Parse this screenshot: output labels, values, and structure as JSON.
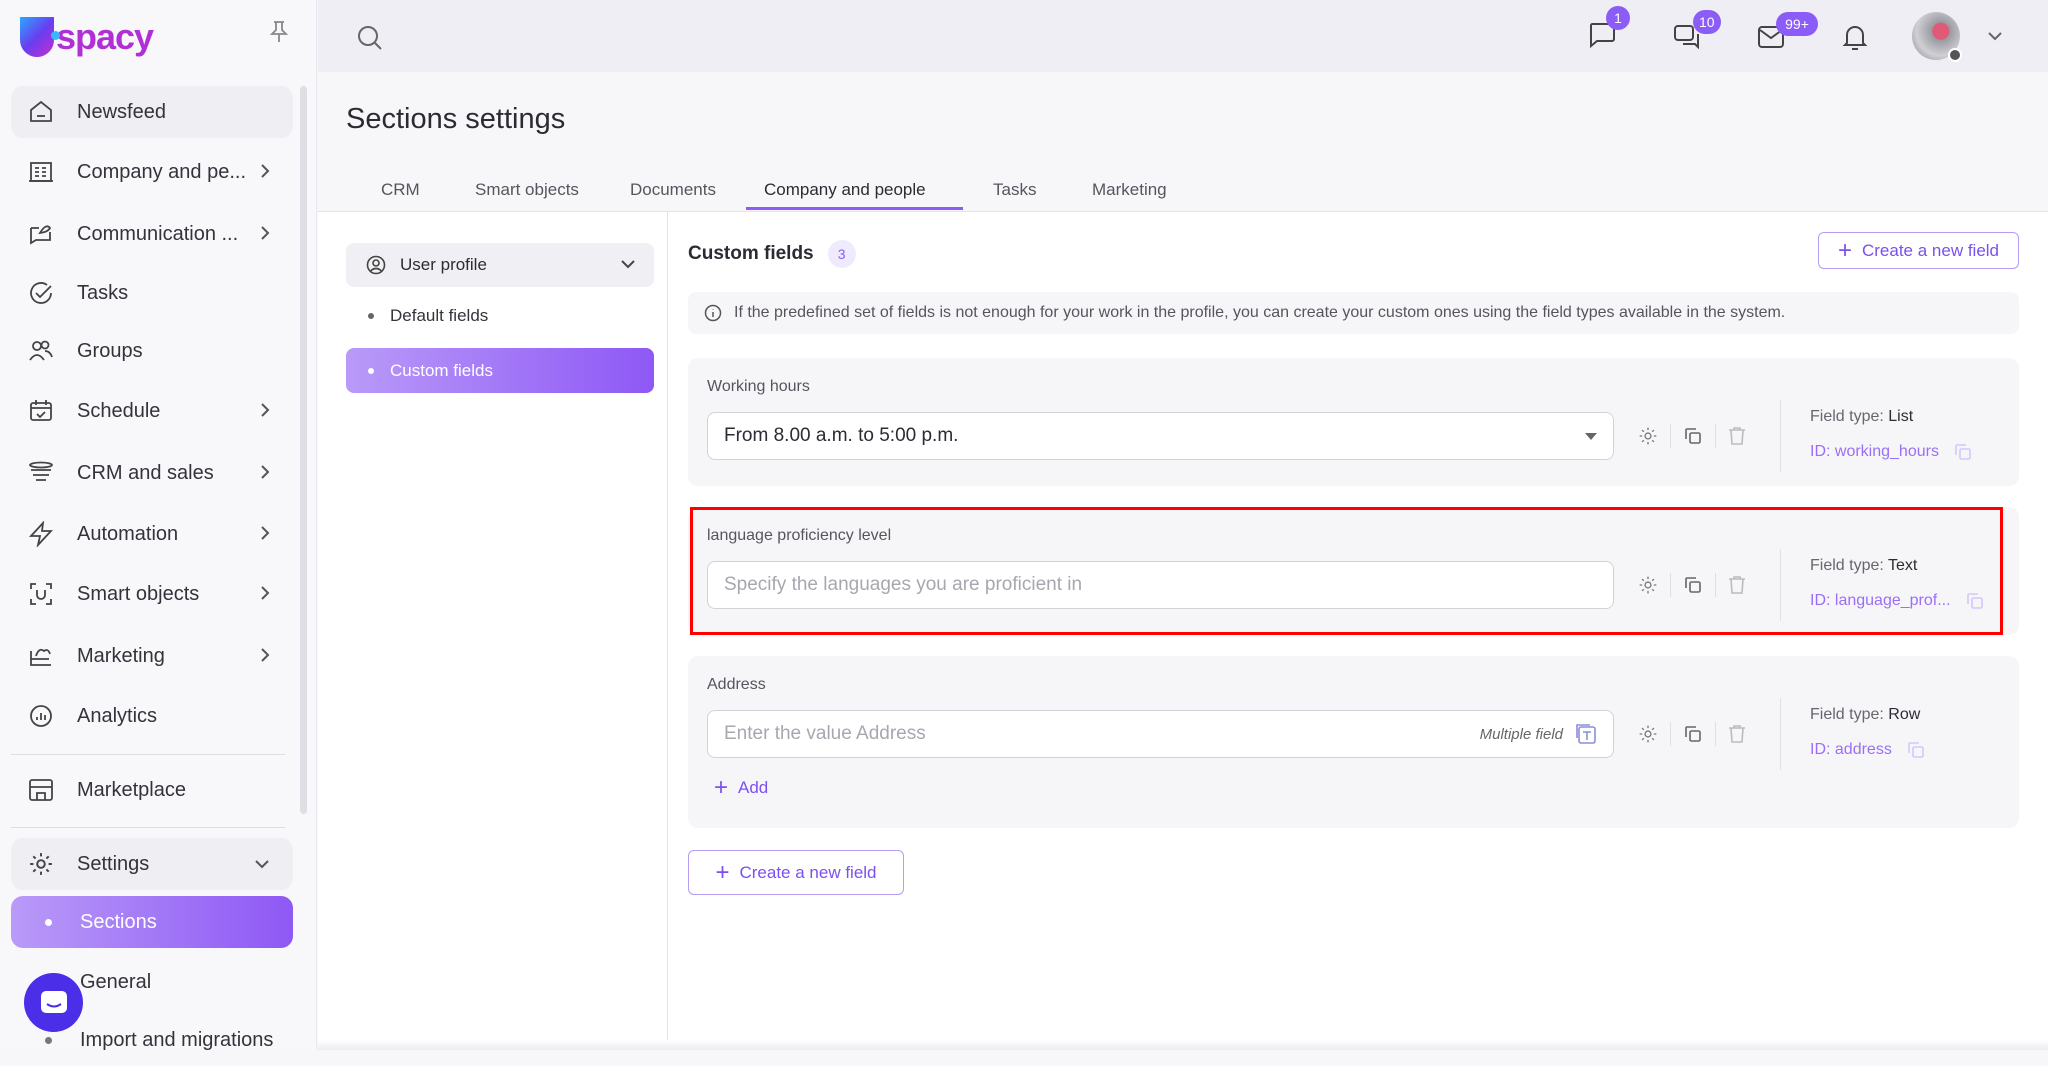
{
  "app": {
    "logo": "spacy",
    "accent": "#8b5cf6"
  },
  "sidebar": {
    "items": [
      {
        "label": "Newsfeed",
        "icon": "home-icon"
      },
      {
        "label": "Company and pe...",
        "icon": "building-icon"
      },
      {
        "label": "Communication ...",
        "icon": "chat-icon"
      },
      {
        "label": "Tasks",
        "icon": "check-circle-icon"
      },
      {
        "label": "Groups",
        "icon": "users-icon"
      },
      {
        "label": "Schedule",
        "icon": "calendar-icon"
      },
      {
        "label": "CRM and sales",
        "icon": "funnel-icon"
      },
      {
        "label": "Automation",
        "icon": "lightning-icon"
      },
      {
        "label": "Smart objects",
        "icon": "scan-icon"
      },
      {
        "label": "Marketing",
        "icon": "megaphone-icon"
      },
      {
        "label": "Analytics",
        "icon": "chart-icon"
      }
    ],
    "marketplace": "Marketplace",
    "settings": "Settings",
    "settings_sub": [
      "Sections",
      "General",
      "Import and migrations"
    ]
  },
  "topbar": {
    "badges": {
      "messages": "1",
      "chats": "10",
      "mail": "99+"
    }
  },
  "page": {
    "title": "Sections settings",
    "tabs": [
      "CRM",
      "Smart objects",
      "Documents",
      "Company and people",
      "Tasks",
      "Marketing"
    ],
    "active_tab": "Company and people"
  },
  "subnav": {
    "select": "User profile",
    "items": [
      "Default fields",
      "Custom fields"
    ],
    "active": "Custom fields"
  },
  "custom_fields": {
    "title": "Custom fields",
    "count": "3",
    "create_label": "Create a new field",
    "info": "If the predefined set of fields is not enough for your work in the profile, you can create your custom ones using the field types available in the system.",
    "field_type_label": "Field type:",
    "fields": [
      {
        "label": "Working hours",
        "value": "From 8.00 a.m. to 5:00 p.m.",
        "type": "List",
        "id": "ID: working_hours"
      },
      {
        "label": "language proficiency level",
        "placeholder": "Specify the languages you are proficient in",
        "type": "Text",
        "id": "ID: language_prof..."
      },
      {
        "label": "Address",
        "placeholder": "Enter the value Address",
        "multiple": "Multiple field",
        "type": "Row",
        "id": "ID: address",
        "add": "Add"
      }
    ]
  }
}
